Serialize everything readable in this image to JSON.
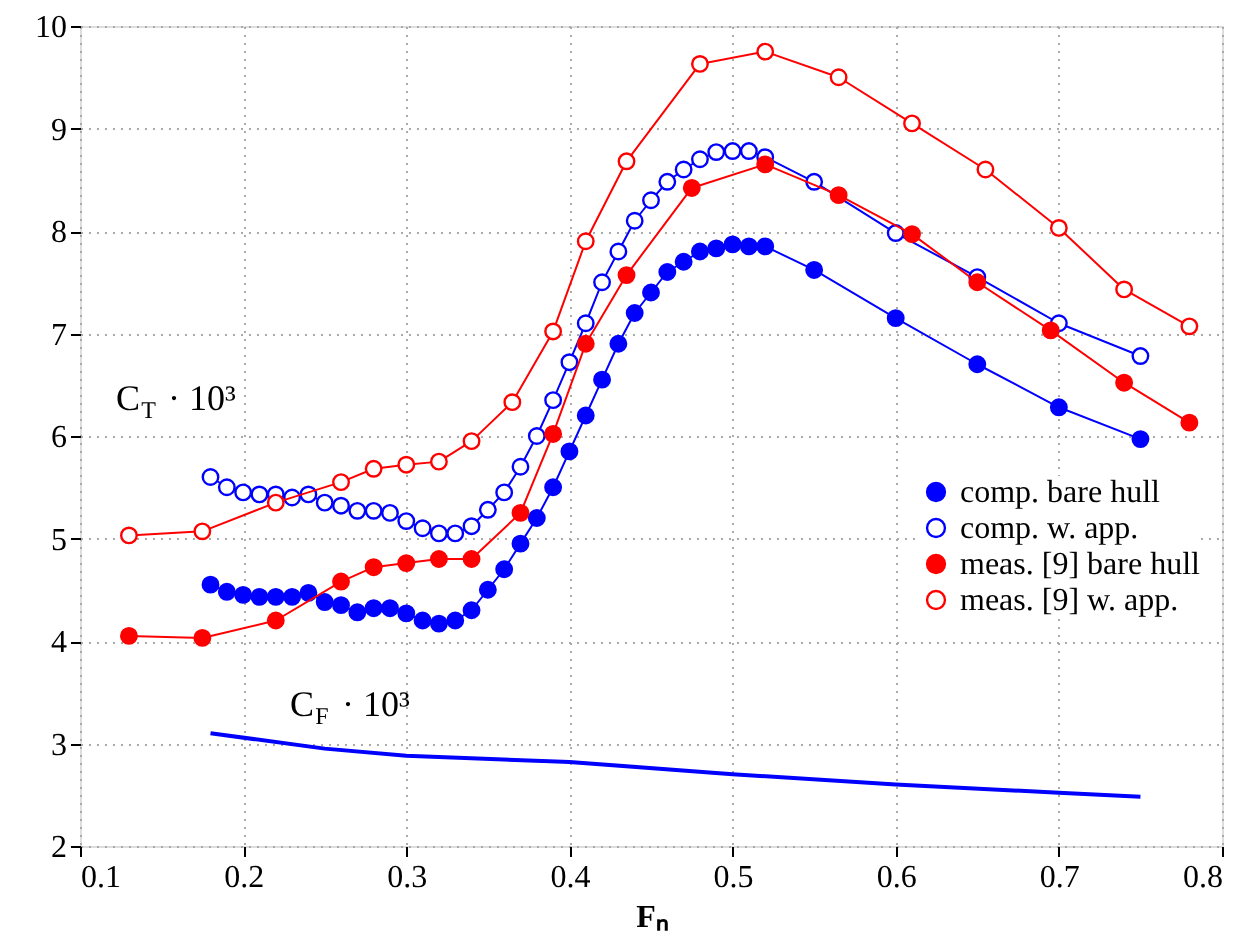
{
  "chart_data": {
    "type": "line",
    "xlabel": "Fₙ",
    "xlim": [
      0.1,
      0.8
    ],
    "xticks": [
      0.1,
      0.2,
      0.3,
      0.4,
      0.5,
      0.6,
      0.7,
      0.8
    ],
    "ylim": [
      2,
      10
    ],
    "yticks": [
      2,
      3,
      4,
      5,
      6,
      7,
      8,
      9,
      10
    ],
    "grid": true,
    "legend": "bottom right",
    "marker": "circle",
    "annotations": [
      "C$_{T}$ · 10³",
      "C$_{F}$ · 10³"
    ],
    "series": [
      {
        "name": "comp. bare hull",
        "color": "#0000ff",
        "x": [
          0.18,
          0.19,
          0.2,
          0.21,
          0.22,
          0.23,
          0.24,
          0.25,
          0.26,
          0.27,
          0.28,
          0.29,
          0.3,
          0.31,
          0.32,
          0.33,
          0.34,
          0.35,
          0.36,
          0.37,
          0.38,
          0.39,
          0.4,
          0.41,
          0.42,
          0.43,
          0.44,
          0.45,
          0.46,
          0.47,
          0.48,
          0.49,
          0.5,
          0.51,
          0.52,
          0.55,
          0.6,
          0.65,
          0.7,
          0.75
        ],
        "values": [
          4.55,
          4.48,
          4.45,
          4.43,
          4.43,
          4.43,
          4.47,
          4.38,
          4.35,
          4.28,
          4.32,
          4.32,
          4.27,
          4.2,
          4.17,
          4.2,
          4.3,
          4.5,
          4.7,
          4.95,
          5.2,
          5.5,
          5.85,
          6.2,
          6.55,
          6.9,
          7.2,
          7.4,
          7.6,
          7.7,
          7.8,
          7.83,
          7.87,
          7.85,
          7.85,
          7.62,
          7.15,
          6.7,
          6.28,
          5.97
        ]
      },
      {
        "name": "comp. w. app.",
        "color": "#0000ff",
        "marker": "open circle",
        "x": [
          0.18,
          0.19,
          0.2,
          0.21,
          0.22,
          0.23,
          0.24,
          0.25,
          0.26,
          0.27,
          0.28,
          0.29,
          0.3,
          0.31,
          0.32,
          0.33,
          0.34,
          0.35,
          0.36,
          0.37,
          0.38,
          0.39,
          0.4,
          0.41,
          0.42,
          0.43,
          0.44,
          0.45,
          0.46,
          0.47,
          0.48,
          0.49,
          0.5,
          0.51,
          0.52,
          0.55,
          0.6,
          0.65,
          0.7,
          0.75
        ],
        "values": [
          5.6,
          5.5,
          5.45,
          5.43,
          5.43,
          5.4,
          5.43,
          5.35,
          5.32,
          5.27,
          5.27,
          5.25,
          5.17,
          5.1,
          5.05,
          5.05,
          5.12,
          5.28,
          5.45,
          5.7,
          6.0,
          6.35,
          6.72,
          7.1,
          7.5,
          7.8,
          8.1,
          8.3,
          8.48,
          8.6,
          8.7,
          8.77,
          8.78,
          8.78,
          8.72,
          8.48,
          7.98,
          7.55,
          7.1,
          6.78
        ]
      },
      {
        "name": "meas. [9] bare hull",
        "color": "#ff0000",
        "x": [
          0.13,
          0.175,
          0.22,
          0.26,
          0.28,
          0.3,
          0.32,
          0.34,
          0.37,
          0.39,
          0.41,
          0.435,
          0.475,
          0.52,
          0.565,
          0.61,
          0.65,
          0.695,
          0.74,
          0.78
        ],
        "values": [
          4.05,
          4.03,
          4.2,
          4.58,
          4.72,
          4.76,
          4.8,
          4.8,
          5.25,
          6.02,
          6.9,
          7.57,
          8.42,
          8.65,
          8.35,
          7.97,
          7.5,
          7.03,
          6.52,
          6.13
        ]
      },
      {
        "name": "meas. [9] w. app.",
        "color": "#ff0000",
        "marker": "open circle",
        "x": [
          0.13,
          0.175,
          0.22,
          0.26,
          0.28,
          0.3,
          0.32,
          0.34,
          0.365,
          0.39,
          0.41,
          0.435,
          0.48,
          0.52,
          0.565,
          0.61,
          0.655,
          0.7,
          0.74,
          0.78
        ],
        "values": [
          5.03,
          5.07,
          5.35,
          5.55,
          5.68,
          5.72,
          5.75,
          5.95,
          6.33,
          7.02,
          7.9,
          8.68,
          9.63,
          9.75,
          9.5,
          9.05,
          8.6,
          8.03,
          7.43,
          7.07
        ]
      },
      {
        "color": "#0000ff",
        "marker": "none",
        "x": [
          0.18,
          0.25,
          0.3,
          0.4,
          0.5,
          0.6,
          0.7,
          0.75
        ],
        "values": [
          3.1,
          2.95,
          2.88,
          2.82,
          2.7,
          2.6,
          2.52,
          2.48
        ]
      }
    ]
  }
}
